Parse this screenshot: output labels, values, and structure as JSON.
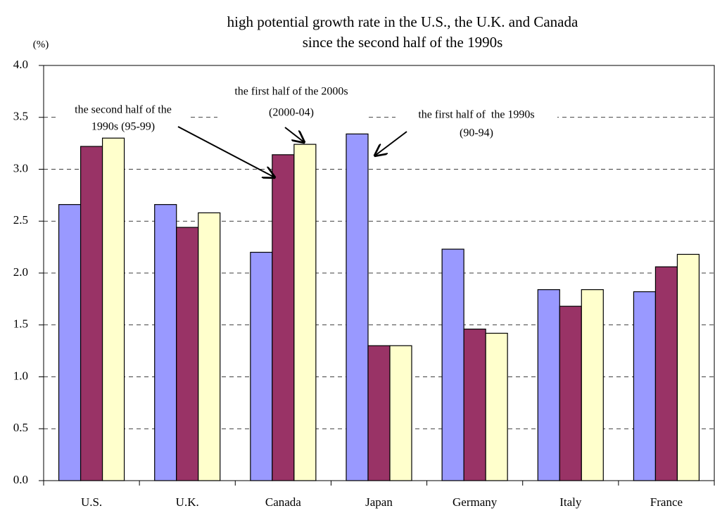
{
  "chart_data": {
    "type": "bar",
    "title": [
      "high potential growth rate in the U.S., the U.K. and Canada",
      "since the second half of the 1990s"
    ],
    "y_label": "(%)",
    "categories": [
      "U.S.",
      "U.K.",
      "Canada",
      "Japan",
      "Germany",
      "Italy",
      "France"
    ],
    "series": [
      {
        "color": "#9999ff",
        "values": [
          2.66,
          2.66,
          2.2,
          3.34,
          2.23,
          1.84,
          1.82
        ]
      },
      {
        "color": "#993366",
        "values": [
          3.22,
          2.44,
          3.14,
          1.3,
          1.46,
          1.68,
          2.06
        ]
      },
      {
        "color": "#ffffcc",
        "values": [
          3.3,
          2.58,
          3.24,
          1.3,
          1.42,
          1.84,
          2.18
        ]
      }
    ],
    "annotations": [
      {
        "lines": [
          "the second half of the",
          "1990s (95-99)"
        ]
      },
      {
        "lines": [
          "the first half of the 2000s",
          "(2000-04)"
        ]
      },
      {
        "lines": [
          "the first half of  the 1990s",
          "(90-94)"
        ]
      }
    ],
    "ylim": [
      0,
      4
    ],
    "yticks": [
      {
        "value": 0,
        "label": "0.0"
      },
      0.5,
      {
        "value": 1,
        "label": "1.0"
      },
      1.5,
      {
        "value": 2,
        "label": "2.0"
      },
      2.5,
      {
        "value": 3,
        "label": "3.0"
      },
      3.5,
      {
        "value": 4,
        "label": "4.0"
      }
    ],
    "grid": true
  }
}
